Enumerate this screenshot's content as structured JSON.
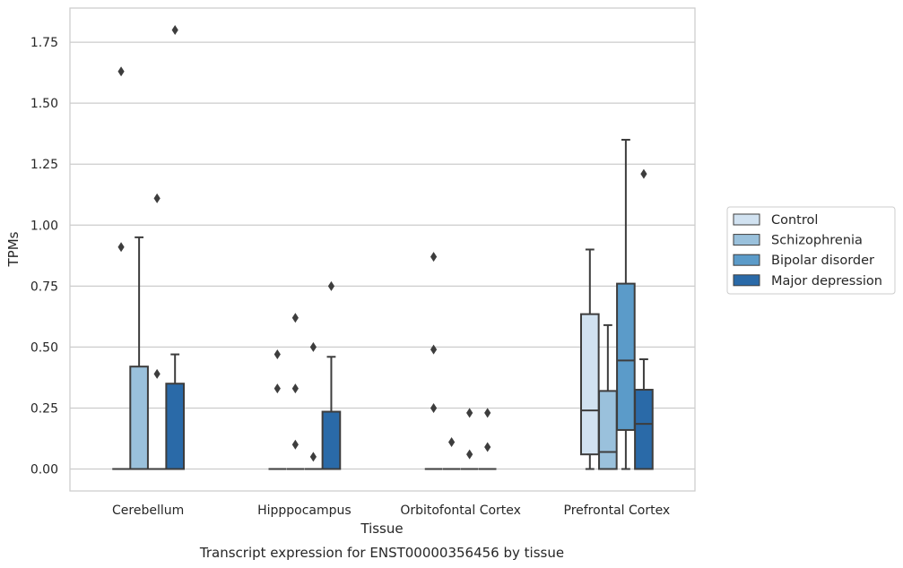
{
  "chart_data": {
    "type": "boxplot",
    "title": "",
    "xlabel": "Tissue",
    "ylabel": "TPMs",
    "caption": "Transcript expression for ENST00000356456 by tissue",
    "categories": [
      "Cerebellum",
      "Hipppocampus",
      "Orbitofontal Cortex",
      "Prefrontal Cortex"
    ],
    "ylim": [
      -0.09,
      1.89
    ],
    "yticks": [
      0.0,
      0.25,
      0.5,
      0.75,
      1.0,
      1.25,
      1.5,
      1.75
    ],
    "ytick_labels": [
      "0.00",
      "0.25",
      "0.50",
      "0.75",
      "1.00",
      "1.25",
      "1.50",
      "1.75"
    ],
    "grid": true,
    "legend_position": "right",
    "series": [
      {
        "name": "Control",
        "color": "#d1e2f1",
        "boxes": [
          {
            "q1": 0,
            "median": 0,
            "q3": 0,
            "whislo": 0,
            "whishi": 0,
            "fliers": [
              0.91,
              1.63
            ]
          },
          {
            "q1": 0,
            "median": 0,
            "q3": 0,
            "whislo": 0,
            "whishi": 0,
            "fliers": [
              0.33,
              0.47
            ]
          },
          {
            "q1": 0,
            "median": 0,
            "q3": 0,
            "whislo": 0,
            "whishi": 0,
            "fliers": [
              0.25,
              0.49,
              0.87
            ]
          },
          {
            "q1": 0.06,
            "median": 0.24,
            "q3": 0.635,
            "whislo": 0,
            "whishi": 0.9,
            "fliers": []
          }
        ]
      },
      {
        "name": "Schizophrenia",
        "color": "#9ac1dc",
        "boxes": [
          {
            "q1": 0,
            "median": 0,
            "q3": 0.42,
            "whislo": 0,
            "whishi": 0.95,
            "fliers": []
          },
          {
            "q1": 0,
            "median": 0,
            "q3": 0,
            "whislo": 0,
            "whishi": 0,
            "fliers": [
              0.1,
              0.33,
              0.62
            ]
          },
          {
            "q1": 0,
            "median": 0,
            "q3": 0,
            "whislo": 0,
            "whishi": 0,
            "fliers": [
              0.11
            ]
          },
          {
            "q1": 0,
            "median": 0.07,
            "q3": 0.32,
            "whislo": 0,
            "whishi": 0.59,
            "fliers": []
          }
        ]
      },
      {
        "name": "Bipolar disorder",
        "color": "#5b9bc9",
        "boxes": [
          {
            "q1": 0,
            "median": 0,
            "q3": 0,
            "whislo": 0,
            "whishi": 0,
            "fliers": [
              0.39,
              1.11
            ]
          },
          {
            "q1": 0,
            "median": 0,
            "q3": 0,
            "whislo": 0,
            "whishi": 0,
            "fliers": [
              0.05,
              0.5
            ]
          },
          {
            "q1": 0,
            "median": 0,
            "q3": 0,
            "whislo": 0,
            "whishi": 0,
            "fliers": [
              0.06,
              0.23
            ]
          },
          {
            "q1": 0.16,
            "median": 0.445,
            "q3": 0.76,
            "whislo": 0,
            "whishi": 1.35,
            "fliers": []
          }
        ]
      },
      {
        "name": "Major depression",
        "color": "#2a6aa8",
        "boxes": [
          {
            "q1": 0,
            "median": 0,
            "q3": 0.35,
            "whislo": 0,
            "whishi": 0.47,
            "fliers": [
              1.8
            ]
          },
          {
            "q1": 0,
            "median": 0,
            "q3": 0.235,
            "whislo": 0,
            "whishi": 0.46,
            "fliers": [
              0.75
            ]
          },
          {
            "q1": 0,
            "median": 0,
            "q3": 0,
            "whislo": 0,
            "whishi": 0,
            "fliers": [
              0.09,
              0.23
            ]
          },
          {
            "q1": 0,
            "median": 0.185,
            "q3": 0.325,
            "whislo": 0,
            "whishi": 0.45,
            "fliers": [
              1.21
            ]
          }
        ]
      }
    ]
  }
}
